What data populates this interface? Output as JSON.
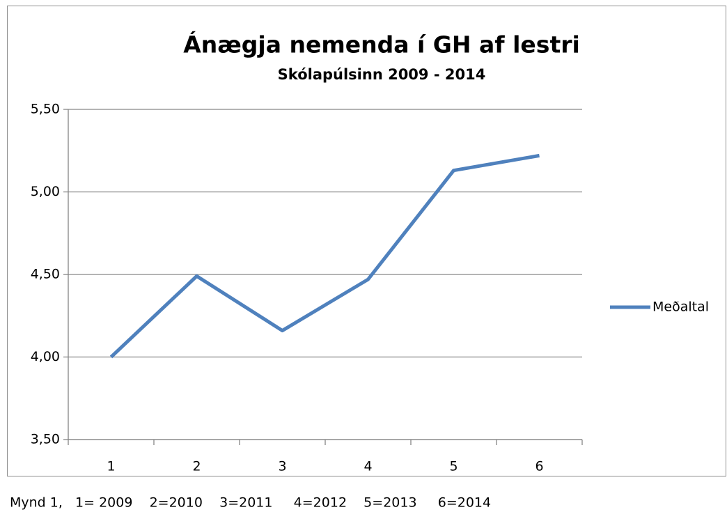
{
  "chart_data": {
    "type": "line",
    "title": "Ánægja nemenda í GH af lestri",
    "subtitle": "Skólapúlsinn 2009 - 2014",
    "categories": [
      "1",
      "2",
      "3",
      "4",
      "5",
      "6"
    ],
    "series": [
      {
        "name": "Meðaltal",
        "color": "#4f81bd",
        "values": [
          4.0,
          4.49,
          4.16,
          4.47,
          5.13,
          5.22
        ]
      }
    ],
    "ylim": [
      3.5,
      5.5
    ],
    "yticks": [
      {
        "value": 3.5,
        "label": "3,50"
      },
      {
        "value": 4.0,
        "label": "4,00"
      },
      {
        "value": 4.5,
        "label": "4,50"
      },
      {
        "value": 5.0,
        "label": "5,00"
      },
      {
        "value": 5.5,
        "label": "5,50"
      }
    ],
    "grid": true,
    "legend": "right",
    "caption": "Mynd 1,   1= 2009    2=2010    3=2011     4=2012    5=2013     6=2014"
  }
}
